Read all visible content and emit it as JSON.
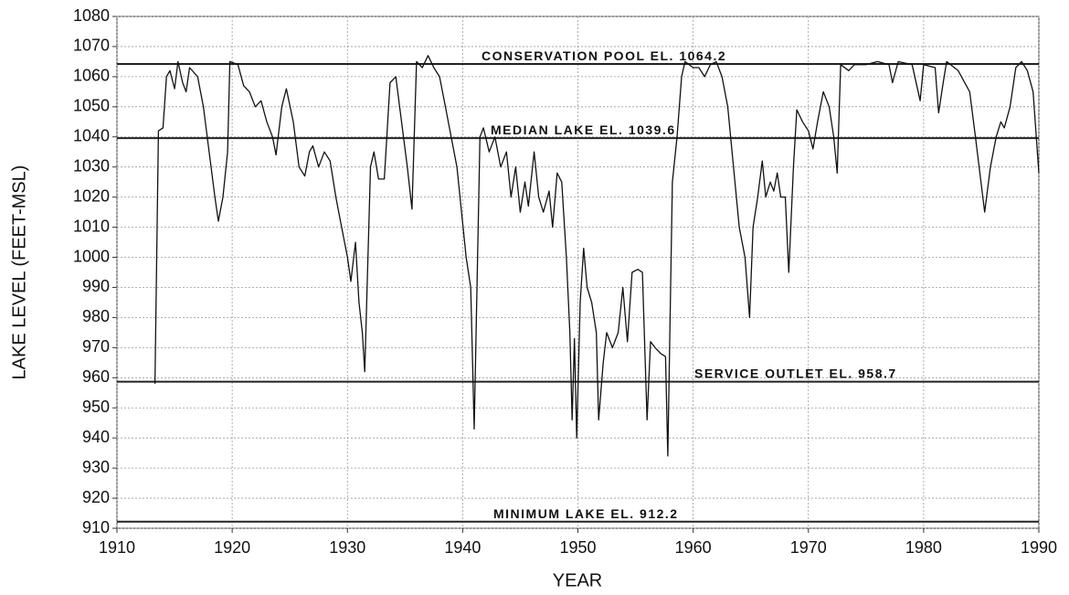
{
  "chart_data": {
    "type": "line",
    "x_label": "YEAR",
    "y_label": "LAKE LEVEL (FEET-MSL)",
    "xlim": [
      1910,
      1990
    ],
    "xticks": [
      1910,
      1920,
      1930,
      1940,
      1950,
      1960,
      1970,
      1980,
      1990
    ],
    "ylim": [
      910,
      1080
    ],
    "yticks": [
      910,
      920,
      930,
      940,
      950,
      960,
      970,
      980,
      990,
      1000,
      1010,
      1020,
      1030,
      1040,
      1050,
      1060,
      1070,
      1080
    ],
    "grid": true,
    "color": "#111111",
    "hlines": [
      {
        "value": 1064.2,
        "label": "CONSERVATION POOL EL. 1064.2"
      },
      {
        "value": 1039.6,
        "label": "MEDIAN LAKE EL. 1039.6"
      },
      {
        "value": 958.7,
        "label": "SERVICE OUTLET EL. 958.7"
      },
      {
        "value": 912.2,
        "label": "MINIMUM LAKE EL. 912.2"
      }
    ],
    "x": [
      1913.3,
      1913.6,
      1914,
      1914.3,
      1914.6,
      1915,
      1915.3,
      1915.7,
      1916,
      1916.3,
      1917,
      1917.5,
      1918,
      1918.5,
      1918.8,
      1919.2,
      1919.6,
      1919.8,
      1920.5,
      1921,
      1921.5,
      1922,
      1922.5,
      1923,
      1923.5,
      1923.8,
      1924.3,
      1924.7,
      1925.3,
      1925.8,
      1926.3,
      1926.7,
      1927,
      1927.5,
      1928,
      1928.5,
      1929,
      1929.5,
      1930,
      1930.3,
      1930.7,
      1931,
      1931.3,
      1931.5,
      1932,
      1932.3,
      1932.7,
      1933.2,
      1933.7,
      1934.2,
      1934.7,
      1935.2,
      1935.6,
      1936,
      1936.5,
      1937,
      1937.5,
      1938,
      1938.5,
      1939.5,
      1940.3,
      1940.7,
      1941,
      1941.5,
      1941.8,
      1942.3,
      1942.8,
      1943.3,
      1943.8,
      1944.2,
      1944.6,
      1945,
      1945.4,
      1945.7,
      1946.2,
      1946.6,
      1947,
      1947.5,
      1947.8,
      1948.2,
      1948.6,
      1949,
      1949.3,
      1949.5,
      1949.7,
      1949.9,
      1950.2,
      1950.5,
      1950.8,
      1951.2,
      1951.6,
      1951.8,
      1952.2,
      1952.5,
      1953,
      1953.5,
      1953.9,
      1954.3,
      1954.7,
      1955.2,
      1955.6,
      1956,
      1956.3,
      1956.7,
      1957.2,
      1957.6,
      1957.8,
      1958.2,
      1958.6,
      1959,
      1959.3,
      1960,
      1960.5,
      1961,
      1961.5,
      1962,
      1962.5,
      1963,
      1963.5,
      1964,
      1964.5,
      1964.9,
      1965.2,
      1965.6,
      1966,
      1966.3,
      1966.7,
      1967,
      1967.3,
      1967.6,
      1968,
      1968.3,
      1968.7,
      1969,
      1969.5,
      1970,
      1970.4,
      1970.8,
      1971.3,
      1971.8,
      1972.2,
      1972.5,
      1972.8,
      1973.5,
      1974,
      1975,
      1976,
      1977,
      1977.3,
      1977.8,
      1979,
      1979.7,
      1980,
      1981,
      1981.3,
      1981.7,
      1982,
      1983,
      1984,
      1984.5,
      1985.3,
      1985.8,
      1986.3,
      1986.7,
      1987,
      1987.5,
      1988,
      1988.5,
      1989,
      1989.5,
      1990
    ],
    "values": [
      958,
      1042,
      1043,
      1060,
      1062,
      1056,
      1065,
      1058,
      1055,
      1063,
      1060,
      1050,
      1035,
      1020,
      1012,
      1020,
      1035,
      1065,
      1064,
      1057,
      1055,
      1050,
      1052,
      1045,
      1040,
      1034,
      1050,
      1056,
      1045,
      1030,
      1027,
      1035,
      1037,
      1030,
      1035,
      1032,
      1020,
      1010,
      1000,
      992,
      1005,
      985,
      975,
      962,
      1030,
      1035,
      1026,
      1026,
      1058,
      1060,
      1045,
      1030,
      1016,
      1065,
      1063,
      1067,
      1063,
      1060,
      1050,
      1030,
      1000,
      990,
      943,
      1040,
      1043,
      1035,
      1040,
      1030,
      1035,
      1020,
      1030,
      1015,
      1025,
      1017,
      1035,
      1020,
      1015,
      1022,
      1010,
      1028,
      1025,
      1000,
      975,
      946,
      973,
      940,
      985,
      1003,
      990,
      985,
      975,
      946,
      965,
      975,
      970,
      975,
      990,
      972,
      995,
      996,
      995,
      946,
      972,
      970,
      968,
      967,
      934,
      1025,
      1040,
      1060,
      1065,
      1063,
      1063,
      1060,
      1064,
      1065,
      1060,
      1050,
      1030,
      1010,
      1000,
      980,
      1010,
      1020,
      1032,
      1020,
      1025,
      1022,
      1028,
      1020,
      1020,
      995,
      1030,
      1049,
      1045,
      1042,
      1036,
      1045,
      1055,
      1050,
      1040,
      1028,
      1064,
      1062,
      1064,
      1064,
      1065,
      1064,
      1058,
      1065,
      1064,
      1052,
      1064,
      1063,
      1048,
      1058,
      1065,
      1062,
      1055,
      1040,
      1015,
      1030,
      1040,
      1045,
      1043,
      1050,
      1063,
      1065,
      1062,
      1055,
      1028
    ]
  }
}
